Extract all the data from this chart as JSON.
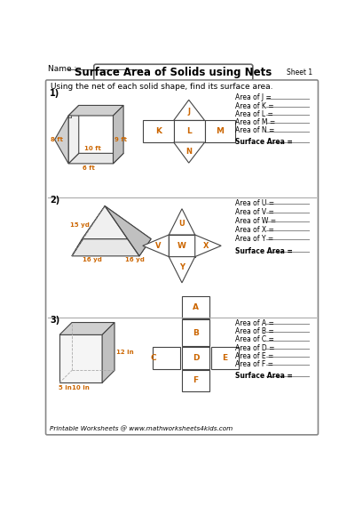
{
  "title": "Surface Area of Solids using Nets",
  "sheet": "Sheet 1",
  "name_label": "Name :",
  "subtitle": "Using the net of each solid shape, find its surface area.",
  "bg_color": "#ffffff",
  "section1": {
    "num": "1)",
    "area_labels": [
      "Area of J =",
      "Area of K =",
      "Area of L =",
      "Area of M =",
      "Area of N =",
      "Surface Area ="
    ],
    "dim_labels": [
      "8 ft",
      "10 ft",
      "9 ft",
      "6 ft"
    ]
  },
  "section2": {
    "num": "2)",
    "area_labels": [
      "Area of U =",
      "Area of V =",
      "Area of W =",
      "Area of X =",
      "Area of Y =",
      "Surface Area ="
    ],
    "dim_labels": [
      "15 yd",
      "16 yd",
      "16 yd"
    ]
  },
  "section3": {
    "num": "3)",
    "area_labels": [
      "Area of A =",
      "Area of B =",
      "Area of C =",
      "Area of D =",
      "Area of E =",
      "Area of F =",
      "Surface Area ="
    ],
    "dim_labels": [
      "12 in",
      "5 in",
      "10 in"
    ]
  },
  "footer": "Printable Worksheets @ www.mathworksheets4kids.com",
  "orange_color": "#cc6600",
  "dark_color": "#222222",
  "gray1": "#e8e8e8",
  "gray2": "#d0d0d0",
  "gray3": "#c0c0c0",
  "gray4": "#f0f0f0",
  "line_color": "#444444",
  "ans_line_color": "#888888"
}
